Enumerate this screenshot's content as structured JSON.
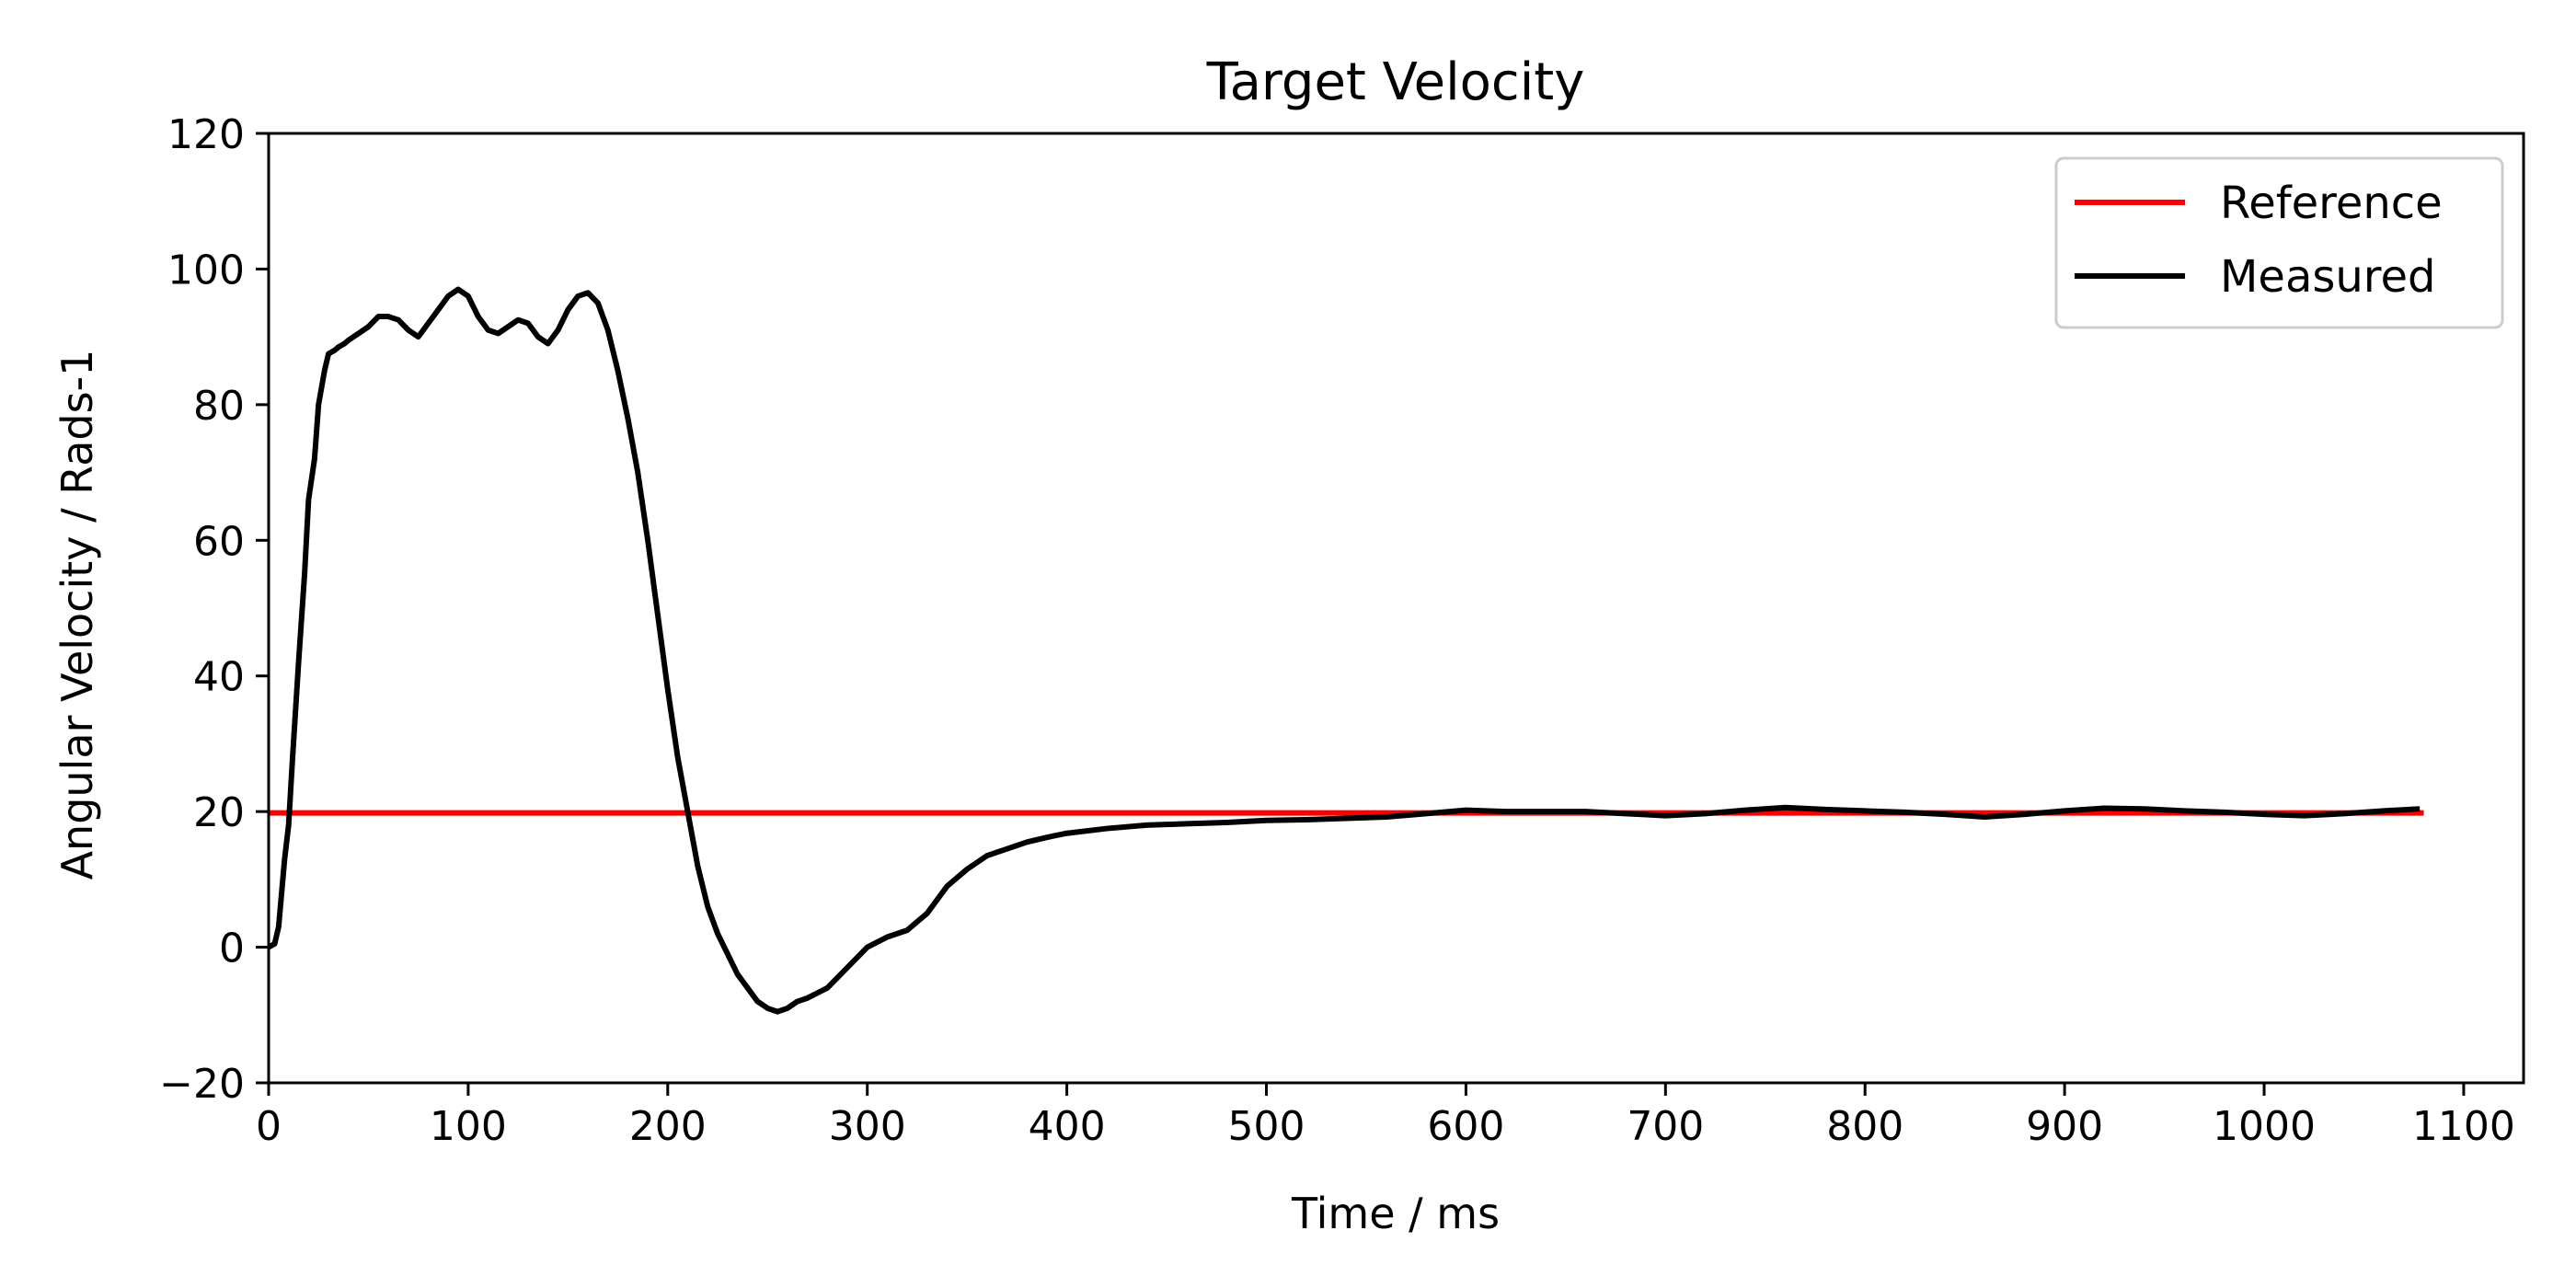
{
  "chart_data": {
    "type": "line",
    "title": "Target Velocity",
    "xlabel": "Time / ms",
    "ylabel": "Angular Velocity / Rads-1",
    "xlim": [
      0,
      1130
    ],
    "ylim": [
      -20,
      120
    ],
    "x_ticks": [
      "0",
      "100",
      "200",
      "300",
      "400",
      "500",
      "600",
      "700",
      "800",
      "900",
      "1000",
      "1100"
    ],
    "y_ticks": [
      "−20",
      "0",
      "20",
      "40",
      "60",
      "80",
      "100",
      "120"
    ],
    "grid": false,
    "legend_position": "top-right",
    "series": [
      {
        "name": "Reference",
        "color": "#ff0000",
        "x": [
          0,
          1080
        ],
        "y": [
          19.8,
          19.8
        ]
      },
      {
        "name": "Measured",
        "color": "#000000",
        "x": [
          0,
          3,
          5,
          8,
          10,
          12,
          15,
          18,
          20,
          23,
          25,
          28,
          30,
          33,
          35,
          38,
          40,
          45,
          50,
          55,
          60,
          65,
          70,
          75,
          80,
          85,
          90,
          95,
          100,
          105,
          110,
          115,
          120,
          125,
          130,
          135,
          140,
          145,
          150,
          155,
          160,
          165,
          170,
          175,
          180,
          185,
          190,
          195,
          200,
          205,
          210,
          215,
          220,
          225,
          230,
          235,
          240,
          245,
          250,
          255,
          260,
          265,
          270,
          280,
          290,
          300,
          310,
          320,
          330,
          340,
          350,
          360,
          370,
          380,
          390,
          400,
          420,
          440,
          460,
          480,
          500,
          520,
          540,
          560,
          580,
          600,
          620,
          640,
          660,
          680,
          700,
          720,
          740,
          760,
          780,
          800,
          820,
          840,
          860,
          880,
          900,
          920,
          940,
          960,
          980,
          1000,
          1020,
          1040,
          1060,
          1078
        ],
        "y": [
          0,
          0.5,
          3,
          13,
          18,
          28,
          42,
          55,
          66,
          72,
          80,
          85,
          87.5,
          88,
          88.5,
          89,
          89.5,
          90.5,
          91.5,
          93,
          93,
          92.5,
          91,
          90,
          92,
          94,
          96,
          97,
          96,
          93,
          91,
          90.5,
          91.5,
          92.5,
          92,
          90,
          89,
          91,
          94,
          96,
          96.5,
          95,
          91,
          85,
          78,
          70,
          60,
          49,
          38,
          28,
          20,
          12,
          6,
          2,
          -1,
          -4,
          -6,
          -8,
          -9,
          -9.5,
          -9,
          -8,
          -7.5,
          -6,
          -3,
          0,
          1.5,
          2.5,
          5,
          9,
          11.5,
          13.5,
          14.5,
          15.5,
          16.2,
          16.8,
          17.5,
          18,
          18.2,
          18.4,
          18.7,
          18.8,
          19,
          19.2,
          19.7,
          20.2,
          20,
          20,
          20,
          19.7,
          19.4,
          19.7,
          20.2,
          20.6,
          20.3,
          20.1,
          19.9,
          19.6,
          19.2,
          19.6,
          20.1,
          20.5,
          20.4,
          20.1,
          19.9,
          19.6,
          19.4,
          19.7,
          20.1,
          20.4
        ]
      }
    ]
  }
}
